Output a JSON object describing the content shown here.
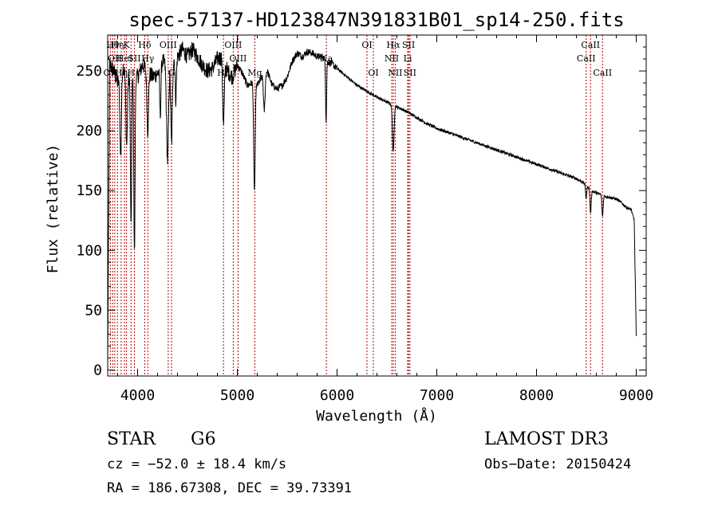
{
  "chart_data": {
    "type": "line",
    "title": "spec-57137-HD123847N391831B01_sp14-250.fits",
    "xlabel": "Wavelength (Å)",
    "ylabel": "Flux (relative)",
    "xlim": [
      3700,
      9100
    ],
    "ylim": [
      -5,
      280
    ],
    "xticks": [
      4000,
      5000,
      6000,
      7000,
      8000,
      9000
    ],
    "yticks": [
      0,
      50,
      100,
      150,
      200,
      250
    ],
    "spectrum_anchors": {
      "x": [
        3700,
        3720,
        3760,
        3800,
        3850,
        3880,
        3920,
        3960,
        4000,
        4050,
        4100,
        4150,
        4200,
        4250,
        4300,
        4350,
        4400,
        4450,
        4500,
        4550,
        4600,
        4650,
        4700,
        4750,
        4800,
        4850,
        4900,
        4950,
        5000,
        5050,
        5100,
        5150,
        5200,
        5250,
        5300,
        5350,
        5400,
        5450,
        5500,
        5550,
        5600,
        5650,
        5700,
        5750,
        5800,
        5850,
        5900,
        5950,
        6000,
        6100,
        6200,
        6300,
        6400,
        6500,
        6600,
        6700,
        6800,
        6900,
        7000,
        7200,
        7400,
        7600,
        7800,
        8000,
        8200,
        8400,
        8500,
        8550,
        8600,
        8700,
        8800,
        8850,
        8900,
        8950,
        8980,
        9000
      ],
      "flux": [
        5,
        255,
        250,
        240,
        255,
        250,
        245,
        248,
        245,
        255,
        250,
        245,
        248,
        258,
        255,
        260,
        262,
        268,
        262,
        268,
        262,
        255,
        250,
        252,
        260,
        262,
        250,
        245,
        255,
        248,
        238,
        240,
        238,
        245,
        250,
        238,
        235,
        238,
        245,
        258,
        265,
        262,
        266,
        265,
        262,
        262,
        258,
        256,
        252,
        245,
        238,
        233,
        228,
        224,
        220,
        216,
        211,
        206,
        202,
        196,
        190,
        184,
        178,
        172,
        166,
        160,
        155,
        150,
        148,
        145,
        143,
        140,
        136,
        134,
        125,
        28
      ]
    },
    "absorption_lines": [
      {
        "x": 3830,
        "depth": 70,
        "width": 8
      },
      {
        "x": 3890,
        "depth": 60,
        "width": 8
      },
      {
        "x": 3934,
        "depth": 130,
        "width": 6
      },
      {
        "x": 3968,
        "depth": 150,
        "width": 6
      },
      {
        "x": 4101,
        "depth": 50,
        "width": 8
      },
      {
        "x": 4227,
        "depth": 40,
        "width": 6
      },
      {
        "x": 4300,
        "depth": 80,
        "width": 10
      },
      {
        "x": 4340,
        "depth": 70,
        "width": 8
      },
      {
        "x": 4383,
        "depth": 35,
        "width": 6
      },
      {
        "x": 4861,
        "depth": 55,
        "width": 8
      },
      {
        "x": 5167,
        "depth": 50,
        "width": 6
      },
      {
        "x": 5175,
        "depth": 60,
        "width": 6
      },
      {
        "x": 5270,
        "depth": 30,
        "width": 8
      },
      {
        "x": 5890,
        "depth": 50,
        "width": 5
      },
      {
        "x": 6563,
        "depth": 40,
        "width": 8
      },
      {
        "x": 8498,
        "depth": 12,
        "width": 6
      },
      {
        "x": 8542,
        "depth": 20,
        "width": 6
      },
      {
        "x": 8662,
        "depth": 18,
        "width": 6
      }
    ],
    "line_markers": [
      {
        "x": 3727,
        "label": "OII",
        "row": 2
      },
      {
        "x": 3750,
        "label": "Hθ",
        "row": 0
      },
      {
        "x": 3771,
        "label": "OII",
        "row": 1
      },
      {
        "x": 3798,
        "label": "Hη",
        "row": 0
      },
      {
        "x": 3835,
        "label": "Hη",
        "row": 2
      },
      {
        "x": 3869,
        "label": "HeI",
        "row": 1
      },
      {
        "x": 3889,
        "label": "K",
        "row": 0
      },
      {
        "x": 3934,
        "label": "H",
        "row": 2
      },
      {
        "x": 3968,
        "label": "SII",
        "row": 1
      },
      {
        "x": 4071,
        "label": "Hδ",
        "row": 0
      },
      {
        "x": 4102,
        "label": "Hγ",
        "row": 1
      },
      {
        "x": 4307,
        "label": "OIII",
        "row": 0
      },
      {
        "x": 4340,
        "label": "G",
        "row": 2
      },
      {
        "x": 4861,
        "label": "Hβ",
        "row": 2
      },
      {
        "x": 4959,
        "label": "OIII",
        "row": 0
      },
      {
        "x": 5007,
        "label": "OIII",
        "row": 1
      },
      {
        "x": 5175,
        "label": "Mg",
        "row": 2
      },
      {
        "x": 5893,
        "label": "Na",
        "row": 1
      },
      {
        "x": 6300,
        "label": "OI",
        "row": 0
      },
      {
        "x": 6364,
        "label": "OI",
        "row": 2
      },
      {
        "x": 6548,
        "label": "NII",
        "row": 1
      },
      {
        "x": 6563,
        "label": "Hα",
        "row": 0
      },
      {
        "x": 6583,
        "label": "NII",
        "row": 2
      },
      {
        "x": 6708,
        "label": "Li",
        "row": 1
      },
      {
        "x": 6717,
        "label": "SII",
        "row": 0
      },
      {
        "x": 6731,
        "label": "SII",
        "row": 2
      },
      {
        "x": 8498,
        "label": "CaII",
        "row": 1
      },
      {
        "x": 8542,
        "label": "CaII",
        "row": 0
      },
      {
        "x": 8662,
        "label": "CaII",
        "row": 2
      }
    ],
    "marker_color": "#b30000",
    "line_color": "#000000"
  },
  "info": {
    "object_class": "STAR",
    "subclass": "G6",
    "survey": "LAMOST DR3",
    "cz": "cz = −52.0 ± 18.4 km/s",
    "obs_date": "Obs−Date: 20150424",
    "coords": "RA = 186.67308, DEC =  39.73391"
  }
}
